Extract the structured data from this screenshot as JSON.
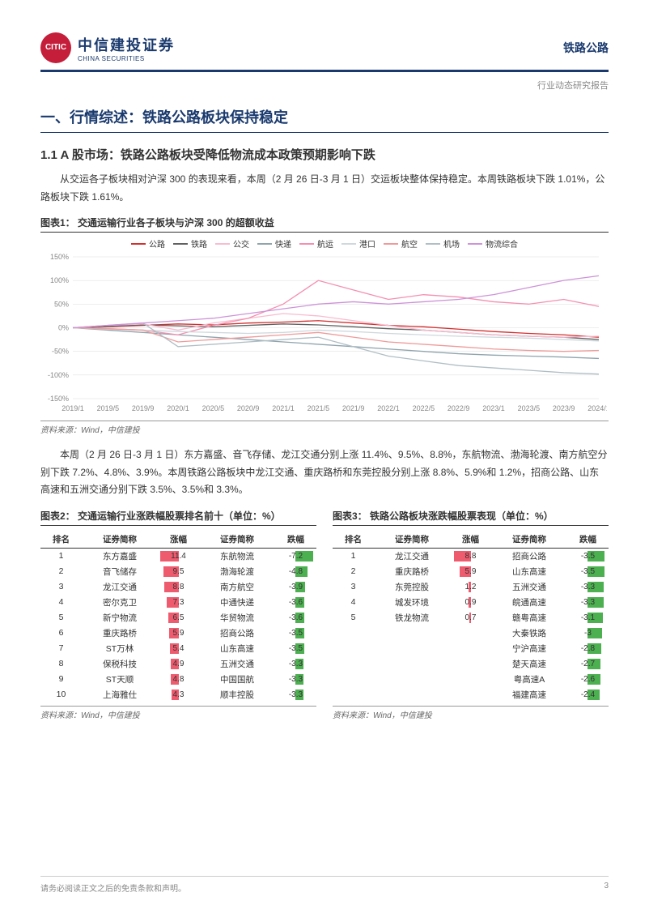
{
  "header": {
    "logo_cn": "中信建投证券",
    "logo_en": "CHINA SECURITIES",
    "logo_badge": "CITIC",
    "right_text": "铁路公路",
    "sub": "行业动态研究报告"
  },
  "section1": {
    "title": "一、行情综述：铁路公路板块保持稳定",
    "subtitle": "1.1 A 股市场：铁路公路板块受降低物流成本政策预期影响下跌",
    "para1": "从交运各子板块相对沪深 300 的表现来看，本周（2 月 26 日-3 月 1 日）交运板块整体保持稳定。本周铁路板块下跌 1.01%，公路板块下跌 1.61%。",
    "para2": "本周（2 月 26 日-3 月 1 日）东方嘉盛、音飞存储、龙江交通分别上涨 11.4%、9.5%、8.8%，东航物流、渤海轮渡、南方航空分别下跌 7.2%、4.8%、3.9%。本周铁路公路板块中龙江交通、重庆路桥和东莞控股分别上涨 8.8%、5.9%和 1.2%，招商公路、山东高速和五洲交通分别下跌 3.5%、3.5%和 3.3%。"
  },
  "chart1": {
    "title": "图表1：  交通运输行业各子板块与沪深 300 的超额收益",
    "source": "资料来源：Wind，中信建投",
    "y_min": -150,
    "y_max": 150,
    "y_step": 50,
    "x_labels": [
      "2019/1",
      "2019/5",
      "2019/9",
      "2020/1",
      "2020/5",
      "2020/9",
      "2021/1",
      "2021/5",
      "2021/9",
      "2022/1",
      "2022/5",
      "2022/9",
      "2023/1",
      "2023/5",
      "2023/9",
      "2024/1"
    ],
    "series": [
      {
        "name": "公路",
        "color": "#d32f2f",
        "data": [
          0,
          2,
          5,
          8,
          6,
          10,
          12,
          15,
          10,
          5,
          2,
          -3,
          -8,
          -12,
          -15,
          -20
        ]
      },
      {
        "name": "铁路",
        "color": "#616161",
        "data": [
          0,
          3,
          6,
          4,
          2,
          5,
          8,
          6,
          2,
          -2,
          -5,
          -10,
          -15,
          -18,
          -20,
          -25
        ]
      },
      {
        "name": "公交",
        "color": "#f8bbd0",
        "data": [
          0,
          5,
          8,
          -5,
          10,
          20,
          30,
          25,
          15,
          5,
          -5,
          -10,
          -15,
          -18,
          -20,
          -18
        ]
      },
      {
        "name": "快递",
        "color": "#90a4ae",
        "data": [
          0,
          -5,
          -10,
          -15,
          -20,
          -25,
          -30,
          -35,
          -40,
          -45,
          -50,
          -55,
          -58,
          -60,
          -62,
          -65
        ]
      },
      {
        "name": "航运",
        "color": "#f48fb1",
        "data": [
          0,
          -2,
          -5,
          -15,
          5,
          20,
          50,
          100,
          80,
          60,
          70,
          65,
          55,
          50,
          60,
          45
        ]
      },
      {
        "name": "港口",
        "color": "#cfd8dc",
        "data": [
          0,
          -3,
          -5,
          -8,
          -10,
          -12,
          -10,
          -5,
          -8,
          -12,
          -15,
          -18,
          -20,
          -22,
          -25,
          -28
        ]
      },
      {
        "name": "航空",
        "color": "#ef9a9a",
        "data": [
          0,
          -2,
          -5,
          -30,
          -25,
          -20,
          -15,
          -10,
          -20,
          -30,
          -35,
          -40,
          -45,
          -48,
          -50,
          -48
        ]
      },
      {
        "name": "机场",
        "color": "#b0bec5",
        "data": [
          0,
          5,
          10,
          -40,
          -35,
          -30,
          -25,
          -20,
          -40,
          -60,
          -70,
          -80,
          -85,
          -90,
          -95,
          -98
        ]
      },
      {
        "name": "物流综合",
        "color": "#ce93d8",
        "data": [
          0,
          5,
          10,
          15,
          20,
          30,
          40,
          50,
          55,
          50,
          55,
          60,
          70,
          85,
          100,
          110
        ]
      }
    ]
  },
  "table2": {
    "title": "图表2：  交通运输行业涨跌幅股票排名前十（单位：%）",
    "source": "资料来源：Wind，中信建投",
    "headers": [
      "排名",
      "证券简称",
      "涨幅",
      "证券简称",
      "跌幅"
    ],
    "up_color": "#ef5b6e",
    "down_color": "#4caf50",
    "max_up": 12,
    "max_down": 8,
    "rows": [
      {
        "rank": 1,
        "up_name": "东方嘉盛",
        "up": 11.4,
        "dn_name": "东航物流",
        "dn": -7.2
      },
      {
        "rank": 2,
        "up_name": "音飞储存",
        "up": 9.5,
        "dn_name": "渤海轮渡",
        "dn": -4.8
      },
      {
        "rank": 3,
        "up_name": "龙江交通",
        "up": 8.8,
        "dn_name": "南方航空",
        "dn": -3.9
      },
      {
        "rank": 4,
        "up_name": "密尔克卫",
        "up": 7.3,
        "dn_name": "中通快递",
        "dn": -3.6
      },
      {
        "rank": 5,
        "up_name": "新宁物流",
        "up": 6.5,
        "dn_name": "华贸物流",
        "dn": -3.6
      },
      {
        "rank": 6,
        "up_name": "重庆路桥",
        "up": 5.9,
        "dn_name": "招商公路",
        "dn": -3.5
      },
      {
        "rank": 7,
        "up_name": "ST万林",
        "up": 5.4,
        "dn_name": "山东高速",
        "dn": -3.5
      },
      {
        "rank": 8,
        "up_name": "保税科技",
        "up": 4.9,
        "dn_name": "五洲交通",
        "dn": -3.3
      },
      {
        "rank": 9,
        "up_name": "ST天顺",
        "up": 4.8,
        "dn_name": "中国国航",
        "dn": -3.3
      },
      {
        "rank": 10,
        "up_name": "上海雅仕",
        "up": 4.3,
        "dn_name": "顺丰控股",
        "dn": -3.3
      }
    ]
  },
  "table3": {
    "title": "图表3：  铁路公路板块涨跌幅股票表现（单位：%）",
    "source": "资料来源：Wind，中信建投",
    "headers": [
      "排名",
      "证券简称",
      "涨幅",
      "证券简称",
      "跌幅"
    ],
    "up_color": "#ef5b6e",
    "down_color": "#4caf50",
    "max_up": 10,
    "max_down": 4,
    "rows": [
      {
        "rank": 1,
        "up_name": "龙江交通",
        "up": 8.8,
        "dn_name": "招商公路",
        "dn": -3.5
      },
      {
        "rank": 2,
        "up_name": "重庆路桥",
        "up": 5.9,
        "dn_name": "山东高速",
        "dn": -3.5
      },
      {
        "rank": 3,
        "up_name": "东莞控股",
        "up": 1.2,
        "dn_name": "五洲交通",
        "dn": -3.3
      },
      {
        "rank": 4,
        "up_name": "城发环境",
        "up": 0.9,
        "dn_name": "皖通高速",
        "dn": -3.3
      },
      {
        "rank": 5,
        "up_name": "铁龙物流",
        "up": 0.7,
        "dn_name": "赣粤高速",
        "dn": -3.1
      },
      {
        "rank": "",
        "up_name": "",
        "up": null,
        "dn_name": "大秦铁路",
        "dn": -3.0
      },
      {
        "rank": "",
        "up_name": "",
        "up": null,
        "dn_name": "宁沪高速",
        "dn": -2.8
      },
      {
        "rank": "",
        "up_name": "",
        "up": null,
        "dn_name": "楚天高速",
        "dn": -2.7
      },
      {
        "rank": "",
        "up_name": "",
        "up": null,
        "dn_name": "粤高速A",
        "dn": -2.6
      },
      {
        "rank": "",
        "up_name": "",
        "up": null,
        "dn_name": "福建高速",
        "dn": -2.4
      }
    ]
  },
  "footer": {
    "disclaimer": "请务必阅读正文之后的免责条款和声明。",
    "page": "3"
  }
}
